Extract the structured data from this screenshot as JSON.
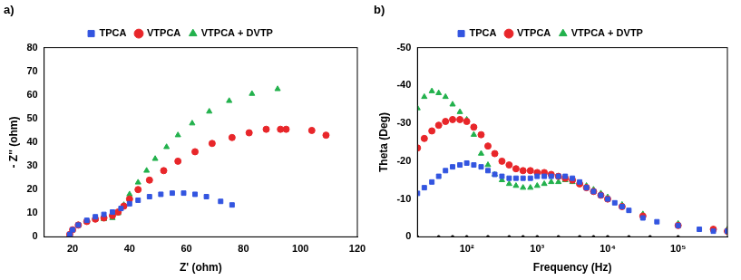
{
  "chart_data": [
    {
      "type": "scatter",
      "title": "a)",
      "x_label": "Z' (ohm)",
      "y_label": "- Z'' (ohm)",
      "xlim": [
        10,
        120
      ],
      "xticks": [
        20,
        40,
        60,
        80,
        100,
        120
      ],
      "ylim": [
        0,
        80
      ],
      "yticks": [
        0,
        10,
        20,
        30,
        40,
        50,
        60,
        70,
        80
      ],
      "grid": false,
      "legend": "top",
      "series": [
        {
          "name": "TPCA",
          "color": "#3355e0",
          "marker": "square",
          "x": [
            19,
            20,
            22,
            25,
            28,
            31,
            34,
            37,
            40,
            43,
            47,
            51,
            55,
            59,
            63,
            67,
            72,
            76
          ],
          "values": [
            1,
            3,
            5,
            7,
            8.5,
            9.5,
            10.5,
            12,
            14,
            15.5,
            17,
            18,
            18.5,
            18.5,
            18,
            17,
            15,
            13.5
          ]
        },
        {
          "name": "VTPCA",
          "color": "#e8262a",
          "marker": "circle",
          "x": [
            19,
            20,
            22,
            25,
            28,
            31,
            34,
            36,
            38,
            40,
            43,
            47,
            52,
            57,
            63,
            69,
            76,
            82,
            88,
            93,
            95,
            104,
            109
          ],
          "values": [
            1,
            3,
            5,
            6.5,
            7.5,
            8,
            9,
            10.5,
            13,
            16,
            20,
            24,
            28,
            32,
            36,
            39.5,
            42,
            44,
            45.5,
            45.5,
            45.5,
            45,
            43
          ]
        },
        {
          "name": "VTPCA + DVTP",
          "color": "#22b14c",
          "marker": "triangle",
          "x": [
            19,
            20,
            22,
            25,
            28,
            31,
            34,
            36,
            38,
            40,
            43,
            46,
            49,
            53,
            57,
            62,
            68,
            75,
            83,
            92
          ],
          "values": [
            1,
            3,
            5,
            6.5,
            7.5,
            7.5,
            8,
            10,
            13.5,
            18,
            23,
            28,
            33,
            38,
            43,
            48,
            53,
            57.5,
            60.5,
            62.5
          ]
        }
      ]
    },
    {
      "type": "scatter",
      "title": "b)",
      "x_label": "Frequency (Hz)",
      "y_label": "Theta (Deg)",
      "log": "x",
      "xlim": [
        20,
        500000
      ],
      "xticks": [
        {
          "value": 100,
          "label": "10²"
        },
        {
          "value": 1000,
          "label": "10³"
        },
        {
          "value": 10000,
          "label": "10⁴"
        },
        {
          "value": 100000,
          "label": "10⁵"
        }
      ],
      "ylim": [
        0,
        -50
      ],
      "yticks": [
        0,
        -10,
        -20,
        -30,
        -40,
        -50
      ],
      "grid": false,
      "legend": "top",
      "series": [
        {
          "name": "TPCA",
          "color": "#3355e0",
          "marker": "square",
          "x": [
            20,
            25,
            32,
            40,
            50,
            63,
            80,
            100,
            126,
            160,
            200,
            250,
            316,
            400,
            500,
            630,
            800,
            1000,
            1260,
            1580,
            2000,
            2500,
            3160,
            4000,
            5000,
            6300,
            8000,
            10000,
            12600,
            16000,
            20000,
            31600,
            50000,
            100000,
            200000,
            316000,
            500000
          ],
          "values": [
            -11.5,
            -13,
            -14.5,
            -16,
            -17.5,
            -18.5,
            -19,
            -19.5,
            -19,
            -18.5,
            -17.5,
            -16.5,
            -16,
            -15.5,
            -15.5,
            -15.5,
            -15.5,
            -16,
            -16,
            -16,
            -16,
            -16,
            -15.5,
            -14.5,
            -13,
            -12,
            -11,
            -10,
            -9,
            -8,
            -7,
            -5,
            -4,
            -3,
            -2,
            -1.5,
            -1.5
          ]
        },
        {
          "name": "VTPCA",
          "color": "#e8262a",
          "marker": "circle",
          "x": [
            20,
            25,
            32,
            40,
            50,
            63,
            80,
            100,
            126,
            160,
            200,
            250,
            316,
            400,
            500,
            630,
            800,
            1000,
            1260,
            1580,
            2000,
            2500,
            3160,
            4000,
            5000,
            6300,
            8000,
            10000,
            16000,
            31600,
            100000,
            316000,
            500000
          ],
          "values": [
            -23.5,
            -26,
            -28,
            -29.5,
            -30.5,
            -31,
            -31,
            -30.5,
            -29,
            -27,
            -24,
            -22,
            -20,
            -19,
            -18,
            -17.5,
            -17.5,
            -17,
            -17,
            -16.5,
            -16,
            -15.5,
            -15,
            -14,
            -13,
            -12,
            -11,
            -10,
            -8,
            -5.5,
            -3,
            -2,
            -1.5
          ]
        },
        {
          "name": "VTPCA + DVTP",
          "color": "#22b14c",
          "marker": "triangle",
          "x": [
            20,
            25,
            32,
            40,
            50,
            63,
            80,
            100,
            126,
            160,
            200,
            250,
            316,
            400,
            500,
            630,
            800,
            1000,
            1260,
            1580,
            2000,
            2500,
            3160,
            4000,
            5000,
            6300,
            8000,
            10000,
            16000,
            31600,
            100000,
            316000,
            500000
          ],
          "values": [
            -34,
            -37,
            -38.5,
            -38,
            -37,
            -35,
            -33,
            -31,
            -27,
            -22,
            -19,
            -16.5,
            -15,
            -14,
            -13.5,
            -13,
            -13,
            -13.5,
            -14,
            -14.5,
            -14.5,
            -15,
            -14.5,
            -14,
            -13.5,
            -12.5,
            -11.5,
            -10.5,
            -8.5,
            -6,
            -3.5,
            -2,
            -2
          ]
        },
        {
          "color": "#000000",
          "marker": "circle",
          "x": [
            20,
            40,
            63,
            100,
            200,
            400,
            630,
            1000,
            2000,
            4000,
            6300,
            10000,
            20000,
            40000,
            100000
          ],
          "values": [
            0,
            0,
            0,
            0,
            0,
            0,
            0,
            0,
            0,
            0,
            0,
            0,
            0,
            0,
            0
          ]
        }
      ]
    }
  ]
}
